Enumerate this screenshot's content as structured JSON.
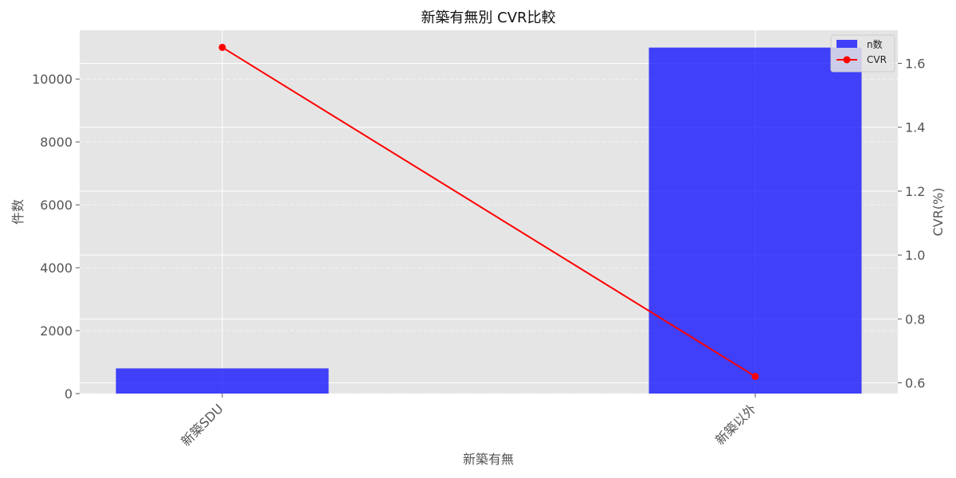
{
  "chart_data": {
    "type": "bar",
    "title": "新築有無別 CVR比較",
    "xlabel": "新築有無",
    "ylabel_left": "件数",
    "ylabel_right": "CVR(%)",
    "categories": [
      "新築SDU",
      "新築以外"
    ],
    "series": [
      {
        "name": "n数",
        "type": "bar",
        "axis": "left",
        "values": [
          800,
          11000
        ],
        "color": "#0000ff"
      },
      {
        "name": "CVR",
        "type": "line",
        "axis": "right",
        "values": [
          1.65,
          0.62
        ],
        "color": "#ff0000"
      }
    ],
    "ylim_left": [
      0,
      11550
    ],
    "yticks_left": [
      0,
      2000,
      4000,
      6000,
      8000,
      10000
    ],
    "ylim_right": [
      0.5665,
      1.7035
    ],
    "yticks_right": [
      0.6,
      0.8,
      1.0,
      1.2,
      1.4,
      1.6
    ],
    "legend_position": "top-right",
    "grid": true,
    "colors": {
      "plot_bg": "#e5e5e5",
      "grid": "#ffffff",
      "left_label": "#0000ff"
    }
  }
}
